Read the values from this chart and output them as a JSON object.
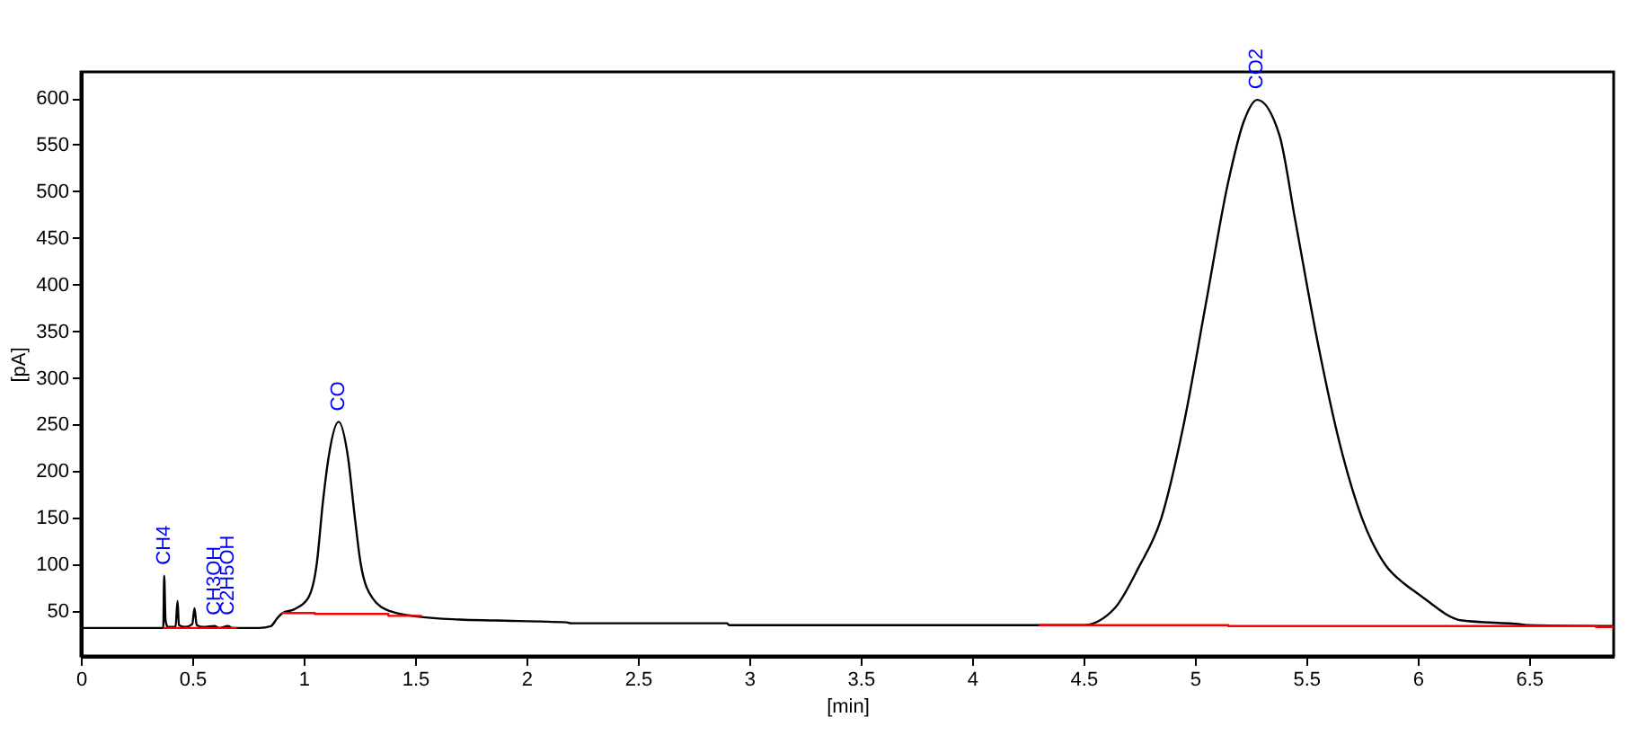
{
  "chart_data": {
    "type": "line",
    "xlabel": "[min]",
    "ylabel": "[pA]",
    "xlim": [
      0,
      6.88
    ],
    "ylim": [
      2,
      628
    ],
    "xticks": [
      0,
      0.5,
      1,
      1.5,
      2,
      2.5,
      3,
      3.5,
      4,
      4.5,
      5,
      5.5,
      6,
      6.5
    ],
    "yticks": [
      50,
      100,
      150,
      200,
      250,
      300,
      350,
      400,
      450,
      500,
      550,
      600
    ],
    "grid": false,
    "line_style": "solid",
    "marker": "none",
    "annotations": [
      {
        "text": "CH4",
        "x": 0.374,
        "y": 88
      },
      {
        "text": "CH3OH",
        "x": 0.6,
        "y": 34
      },
      {
        "text": "C2H5OH",
        "x": 0.66,
        "y": 34
      },
      {
        "text": "CO",
        "x": 1.157,
        "y": 253
      },
      {
        "text": "CO2",
        "x": 5.28,
        "y": 598
      }
    ],
    "series": [
      {
        "color": "#000000",
        "x": [
          0,
          0.36,
          0.37,
          0.374,
          0.38,
          0.39,
          0.425,
          0.434,
          0.44,
          0.47,
          0.5,
          0.51,
          0.52,
          0.55,
          0.6,
          0.62,
          0.66,
          0.68,
          0.8,
          0.853,
          0.88,
          0.905,
          0.958,
          1.02,
          1.059,
          1.086,
          1.112,
          1.157,
          1.199,
          1.23,
          1.256,
          1.309,
          1.388,
          1.52,
          1.7,
          1.86,
          2.18,
          2.2,
          2.9,
          2.91,
          4.5,
          4.64,
          4.746,
          4.85,
          4.95,
          5.05,
          5.15,
          5.22,
          5.28,
          5.38,
          5.45,
          5.55,
          5.65,
          5.75,
          5.857,
          5.937,
          6,
          6.2,
          6.46,
          6.5,
          6.88
        ],
        "values": [
          32,
          32,
          32,
          88,
          40,
          33,
          33,
          61,
          35,
          33,
          36,
          53,
          35,
          33,
          34,
          32,
          34,
          32,
          32,
          34,
          42,
          48,
          52,
          64,
          101,
          166,
          215,
          253,
          215,
          150,
          101,
          64,
          50,
          44,
          41,
          40,
          38,
          37,
          37,
          35,
          35,
          53,
          96,
          150,
          250,
          380,
          510,
          575,
          598,
          560,
          470,
          340,
          230,
          150,
          99,
          80,
          69,
          40,
          36,
          35,
          34
        ]
      },
      {
        "color": "#ff0000",
        "x": [
          0.37,
          0.7,
          0.8,
          0.9,
          1.05,
          1.05,
          1.38,
          1.38,
          1.53,
          4,
          4.3,
          5.15,
          5.15,
          6.8,
          6.8,
          6.88
        ],
        "values": [
          32,
          32,
          null,
          48,
          48,
          47,
          47,
          45,
          45,
          null,
          35,
          35,
          34,
          34,
          33,
          33
        ]
      }
    ]
  }
}
